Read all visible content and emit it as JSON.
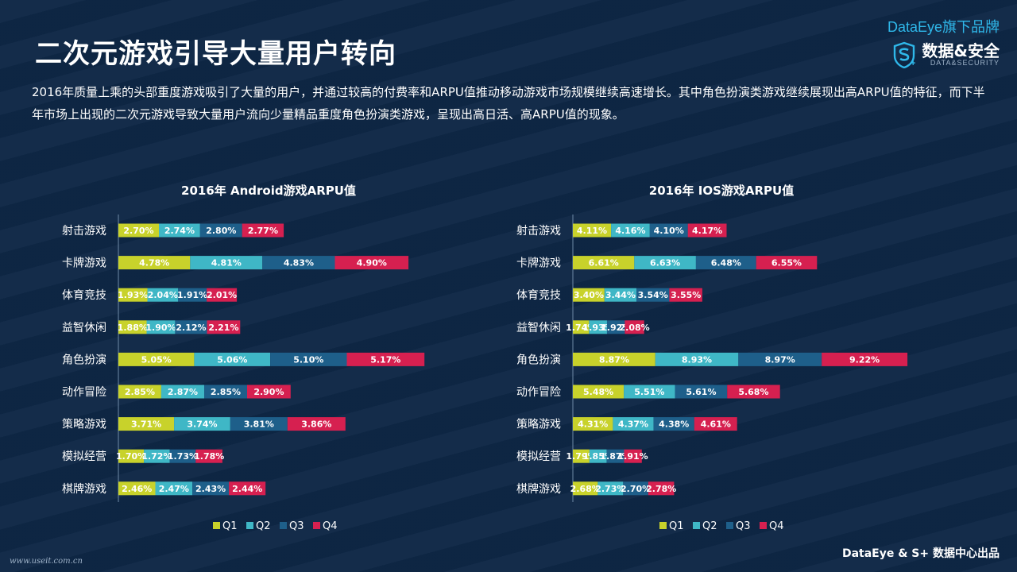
{
  "page": {
    "title": "二次元游戏引导大量用户转向",
    "brand_top": "DataEye旗下品牌",
    "brand_cn": "数据&安全",
    "brand_en": "DATA&SECURITY",
    "description": "2016年质量上乘的头部重度游戏吸引了大量的用户，并通过较高的付费率和ARPU值推动移动游戏市场规模继续高速增长。其中角色扮演类游戏继续展现出高ARPU值的特征，而下半年市场上出现的二次元游戏导致大量用户流向少量精品重度角色扮演类游戏，呈现出高日活、高ARPU值的现象。",
    "footer_left": "www.useit.com.cn",
    "footer_right": "DataEye & S+ 数据中心出品",
    "colors": {
      "Q1": "#c8d22b",
      "Q2": "#3fb7c6",
      "Q3": "#1e5f8a",
      "Q4": "#d62050",
      "background": "#0e2746"
    }
  },
  "chart_data": [
    {
      "type": "bar",
      "stacked": true,
      "orientation": "horizontal",
      "title": "2016年 Android游戏ARPU值",
      "categories": [
        "射击游戏",
        "卡牌游戏",
        "体育竞技",
        "益智休闲",
        "角色扮演",
        "动作冒险",
        "策略游戏",
        "模拟经营",
        "棋牌游戏"
      ],
      "series": [
        {
          "name": "Q1",
          "values": [
            2.7,
            4.78,
            1.93,
            1.88,
            5.05,
            2.85,
            3.71,
            1.7,
            2.46
          ],
          "labels": [
            "2.70%",
            "4.78%",
            "1.93%",
            "1.88%",
            "5.05%",
            "2.85%",
            "3.71%",
            "1.70%",
            "2.46%"
          ]
        },
        {
          "name": "Q2",
          "values": [
            2.74,
            4.81,
            2.04,
            1.9,
            5.06,
            2.87,
            3.74,
            1.72,
            2.47
          ],
          "labels": [
            "2.74%",
            "4.81%",
            "2.04%",
            "1.90%",
            "5.06%",
            "2.87%",
            "3.74%",
            "1.72%",
            "2.47%"
          ]
        },
        {
          "name": "Q3",
          "values": [
            2.8,
            4.83,
            1.91,
            2.12,
            5.1,
            2.85,
            3.81,
            1.73,
            2.43
          ],
          "labels": [
            "2.80%",
            "4.83%",
            "1.91%",
            "2.12%",
            "5.10%",
            "2.85%",
            "3.81%",
            "1.73%",
            "2.43%"
          ]
        },
        {
          "name": "Q4",
          "values": [
            2.77,
            4.9,
            2.01,
            2.21,
            5.17,
            2.9,
            3.86,
            1.78,
            2.44
          ],
          "labels": [
            "2.77%",
            "4.90%",
            "2.01%",
            "2.21%",
            "5.17%",
            "2.90%",
            "3.86%",
            "1.78%",
            "2.44%"
          ]
        }
      ],
      "legend": "bottom"
    },
    {
      "type": "bar",
      "stacked": true,
      "orientation": "horizontal",
      "title": "2016年 IOS游戏ARPU值",
      "categories": [
        "射击游戏",
        "卡牌游戏",
        "体育竞技",
        "益智休闲",
        "角色扮演",
        "动作冒险",
        "策略游戏",
        "模拟经营",
        "棋牌游戏"
      ],
      "series": [
        {
          "name": "Q1",
          "values": [
            4.11,
            6.61,
            3.4,
            1.74,
            8.87,
            5.48,
            4.31,
            1.79,
            2.68
          ],
          "labels": [
            "4.11%",
            "6.61%",
            "3.40%",
            "1.74%",
            "8.87%",
            "5.48%",
            "4.31%",
            "1.79%",
            "2.68%"
          ]
        },
        {
          "name": "Q2",
          "values": [
            4.16,
            6.63,
            3.44,
            1.93,
            8.93,
            5.51,
            4.37,
            1.85,
            2.73
          ],
          "labels": [
            "4.16%",
            "6.63%",
            "3.44%",
            "1.93%",
            "8.93%",
            "5.51%",
            "4.37%",
            "1.85%",
            "2.73%"
          ]
        },
        {
          "name": "Q3",
          "values": [
            4.1,
            6.48,
            3.54,
            1.92,
            8.97,
            5.61,
            4.38,
            1.87,
            2.7
          ],
          "labels": [
            "4.10%",
            "6.48%",
            "3.54%",
            "1.92%",
            "8.97%",
            "5.61%",
            "4.38%",
            "1.87%",
            "2.70%"
          ]
        },
        {
          "name": "Q4",
          "values": [
            4.17,
            6.55,
            3.55,
            2.08,
            9.22,
            5.68,
            4.61,
            1.91,
            2.78
          ],
          "labels": [
            "4.17%",
            "6.55%",
            "3.55%",
            "2.08%",
            "9.22%",
            "5.68%",
            "4.61%",
            "1.91%",
            "2.78%"
          ]
        }
      ],
      "legend": "bottom"
    }
  ]
}
